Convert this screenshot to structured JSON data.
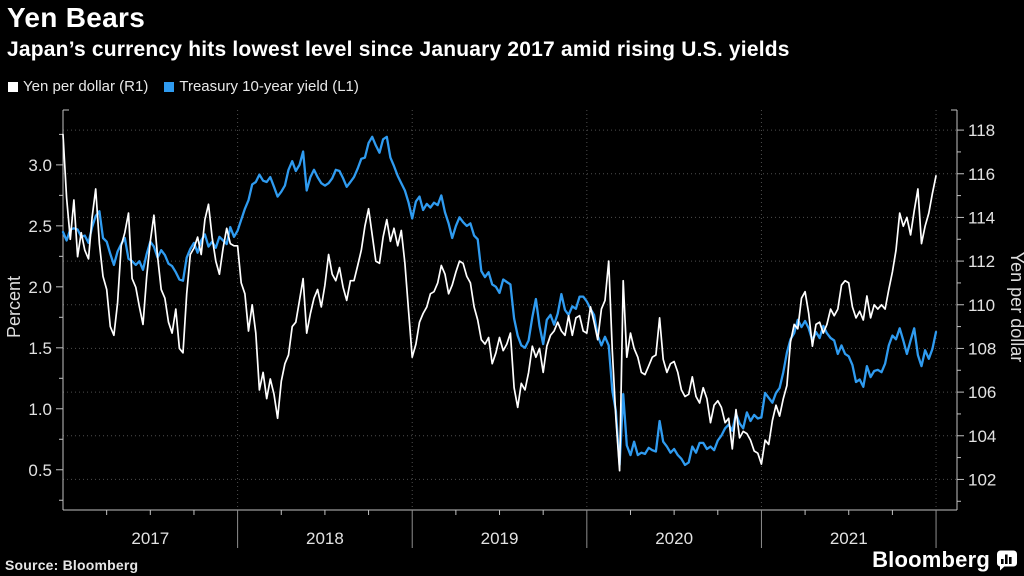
{
  "header": {
    "title": "Yen Bears",
    "subtitle": "Japan’s currency hits lowest level since January 2017 amid rising U.S. yields"
  },
  "legend": {
    "items": [
      {
        "label": "Yen per dollar (R1)",
        "color": "#ffffff"
      },
      {
        "label": "Treasury 10-year yield (L1)",
        "color": "#2f9bf0"
      }
    ]
  },
  "footer": {
    "source": "Source: Bloomberg",
    "brand": "Bloomberg"
  },
  "colors": {
    "background": "#000000",
    "accent_blue": "#2f9bf0",
    "series_white": "#ffffff",
    "gridline": "#4e4e4e",
    "axis": "#c2c2c2"
  },
  "chart_data": {
    "type": "line",
    "title": "Yen Bears",
    "left_axis": {
      "label": "Percent",
      "ticks": [
        0.5,
        1.0,
        1.5,
        2.0,
        2.5,
        3.0
      ],
      "decimals": 1,
      "minor_step": 0.25,
      "range": [
        0.17,
        3.45
      ]
    },
    "right_axis": {
      "label": "Yen per dollar",
      "ticks": [
        102,
        104,
        106,
        108,
        110,
        112,
        114,
        116,
        118
      ],
      "decimals": 0,
      "minor_step": 1,
      "range": [
        100.6,
        118.92
      ]
    },
    "x_axis": {
      "year_labels": [
        "2017",
        "2018",
        "2019",
        "2020",
        "2021"
      ],
      "first_year": 2017,
      "gridlines": [
        2018,
        2019,
        2020,
        2021,
        2022
      ],
      "minor_step": 0.25,
      "range": [
        2017.0,
        2022.12
      ]
    },
    "grid": "horizontal dotted at right-axis ticks, vertical dotted at year starts",
    "legend_position": "top-left",
    "series": [
      {
        "name": "Treasury 10-year yield (L1)",
        "axis": "left",
        "color": "#2f9bf0",
        "width": 2.3,
        "start": 2017.0,
        "step": 0.02083333,
        "values": [
          2.45,
          2.38,
          2.47,
          2.48,
          2.47,
          2.41,
          2.42,
          2.36,
          2.49,
          2.58,
          2.62,
          2.4,
          2.37,
          2.27,
          2.18,
          2.29,
          2.35,
          2.4,
          2.23,
          2.21,
          2.18,
          2.21,
          2.14,
          2.27,
          2.37,
          2.33,
          2.24,
          2.3,
          2.26,
          2.19,
          2.17,
          2.12,
          2.06,
          2.05,
          2.24,
          2.31,
          2.36,
          2.28,
          2.38,
          2.43,
          2.33,
          2.37,
          2.32,
          2.41,
          2.38,
          2.35,
          2.49,
          2.41,
          2.46,
          2.55,
          2.64,
          2.71,
          2.84,
          2.86,
          2.92,
          2.87,
          2.86,
          2.9,
          2.82,
          2.74,
          2.78,
          2.83,
          2.96,
          3.03,
          2.95,
          3.0,
          3.11,
          2.79,
          2.9,
          2.96,
          2.9,
          2.85,
          2.83,
          2.85,
          2.89,
          2.96,
          2.95,
          2.89,
          2.82,
          2.86,
          2.9,
          2.97,
          3.05,
          3.06,
          3.18,
          3.23,
          3.16,
          3.1,
          3.21,
          3.23,
          3.06,
          2.99,
          2.91,
          2.85,
          2.79,
          2.69,
          2.56,
          2.7,
          2.74,
          2.63,
          2.68,
          2.65,
          2.69,
          2.67,
          2.75,
          2.61,
          2.52,
          2.4,
          2.5,
          2.57,
          2.53,
          2.5,
          2.52,
          2.42,
          2.39,
          2.13,
          2.08,
          2.12,
          2.02,
          2.0,
          1.95,
          2.06,
          2.04,
          2.02,
          1.74,
          1.6,
          1.52,
          1.5,
          1.56,
          1.75,
          1.9,
          1.68,
          1.53,
          1.73,
          1.77,
          1.69,
          1.78,
          1.94,
          1.81,
          1.77,
          1.84,
          1.82,
          1.92,
          1.92,
          1.88,
          1.82,
          1.77,
          1.6,
          1.52,
          1.59,
          1.52,
          1.15,
          0.98,
          0.54,
          1.12,
          0.7,
          0.62,
          0.73,
          0.62,
          0.64,
          0.63,
          0.68,
          0.66,
          0.65,
          0.9,
          0.73,
          0.69,
          0.64,
          0.67,
          0.62,
          0.59,
          0.54,
          0.56,
          0.69,
          0.64,
          0.72,
          0.72,
          0.67,
          0.69,
          0.66,
          0.74,
          0.78,
          0.84,
          0.87,
          0.82,
          0.96,
          0.88,
          0.84,
          0.97,
          0.9,
          0.95,
          0.92,
          0.93,
          1.13,
          1.09,
          1.05,
          1.13,
          1.17,
          1.3,
          1.46,
          1.57,
          1.62,
          1.73,
          1.67,
          1.72,
          1.66,
          1.56,
          1.63,
          1.58,
          1.68,
          1.62,
          1.58,
          1.56,
          1.45,
          1.52,
          1.45,
          1.43,
          1.36,
          1.22,
          1.24,
          1.18,
          1.35,
          1.26,
          1.31,
          1.32,
          1.3,
          1.37,
          1.52,
          1.6,
          1.57,
          1.66,
          1.56,
          1.45,
          1.56,
          1.66,
          1.44,
          1.35,
          1.48,
          1.41,
          1.49,
          1.63
        ]
      },
      {
        "name": "Yen per dollar (R1)",
        "axis": "right",
        "color": "#ffffff",
        "width": 1.7,
        "start": 2017.0,
        "step": 0.02083333,
        "values": [
          117.8,
          114.9,
          113.0,
          114.8,
          112.2,
          113.3,
          112.5,
          112.1,
          114.0,
          115.3,
          112.8,
          111.3,
          110.7,
          109.0,
          108.6,
          110.1,
          112.7,
          113.3,
          114.2,
          111.2,
          110.8,
          109.9,
          109.1,
          111.3,
          112.9,
          114.1,
          112.2,
          110.7,
          110.3,
          109.2,
          108.7,
          109.8,
          108.0,
          107.8,
          110.5,
          112.3,
          112.6,
          113.1,
          112.3,
          113.9,
          114.6,
          113.1,
          112.0,
          111.4,
          112.6,
          113.5,
          112.8,
          112.7,
          112.7,
          111.0,
          110.5,
          108.8,
          110.0,
          108.7,
          106.1,
          106.9,
          105.7,
          106.6,
          105.9,
          104.8,
          106.5,
          107.3,
          107.7,
          109.0,
          109.2,
          110.2,
          111.2,
          108.7,
          109.6,
          110.3,
          110.7,
          109.9,
          110.9,
          112.3,
          111.4,
          111.1,
          111.7,
          110.8,
          110.2,
          111.1,
          111.1,
          111.8,
          112.5,
          113.6,
          114.4,
          113.2,
          112.0,
          111.9,
          113.1,
          113.9,
          112.9,
          113.5,
          112.7,
          113.4,
          111.9,
          109.7,
          107.6,
          108.2,
          109.2,
          109.6,
          109.9,
          110.5,
          110.6,
          111.0,
          111.8,
          111.4,
          110.5,
          110.9,
          111.5,
          112.0,
          111.9,
          111.3,
          111.0,
          109.9,
          109.3,
          108.4,
          108.2,
          108.5,
          107.3,
          107.8,
          108.5,
          107.9,
          108.2,
          108.7,
          106.2,
          105.3,
          106.4,
          106.1,
          106.9,
          108.1,
          107.6,
          108.0,
          106.9,
          108.1,
          108.6,
          108.8,
          109.2,
          108.8,
          108.6,
          109.5,
          108.6,
          109.4,
          109.5,
          108.8,
          108.7,
          109.9,
          109.2,
          108.4,
          109.8,
          110.2,
          112.0,
          107.9,
          104.8,
          102.4,
          111.1,
          107.6,
          108.7,
          108.0,
          107.6,
          106.9,
          106.8,
          107.2,
          107.6,
          107.7,
          109.4,
          107.5,
          106.9,
          107.3,
          107.4,
          106.9,
          106.1,
          105.8,
          105.9,
          106.7,
          105.8,
          105.5,
          106.2,
          105.7,
          104.6,
          105.4,
          105.6,
          105.3,
          104.6,
          104.8,
          103.4,
          105.2,
          103.9,
          104.2,
          104.1,
          103.8,
          103.3,
          103.2,
          102.7,
          103.8,
          103.6,
          104.7,
          105.4,
          104.9,
          105.7,
          106.3,
          108.3,
          109.1,
          108.9,
          110.3,
          110.6,
          109.6,
          108.1,
          109.1,
          109.2,
          108.7,
          109.1,
          109.8,
          109.5,
          109.8,
          110.9,
          111.1,
          111.0,
          109.9,
          109.4,
          109.7,
          109.3,
          110.4,
          109.4,
          110.0,
          109.8,
          110.0,
          109.8,
          110.7,
          111.5,
          112.5,
          114.2,
          113.6,
          114.0,
          113.2,
          114.3,
          115.3,
          112.8,
          113.6,
          114.2,
          115.1,
          115.9
        ]
      }
    ]
  }
}
